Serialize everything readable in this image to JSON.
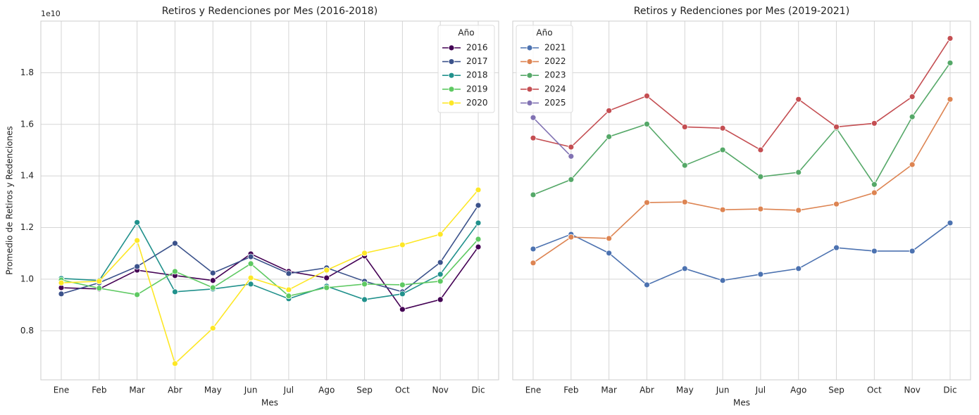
{
  "chart_data": [
    {
      "type": "line",
      "title": "Retiros y Redenciones por Mes (2016-2018)",
      "x_label": "Mes",
      "y_label": "Promedio de Retiros y Redenciones",
      "offset_text": "1e10",
      "categories": [
        "Ene",
        "Feb",
        "Mar",
        "Abr",
        "May",
        "Jun",
        "Jul",
        "Ago",
        "Sep",
        "Oct",
        "Nov",
        "Dic"
      ],
      "ylim": [
        0.61,
        2.0
      ],
      "yticks": [
        0.8,
        {
          "value": 1,
          "label": "1.0"
        },
        1.2,
        1.4,
        1.6,
        1.8
      ],
      "show_ytick_labels": true,
      "grid": true,
      "legend_title": "Año",
      "legend": "upper right",
      "series": [
        {
          "name": "2016",
          "color": "#440154",
          "values": [
            0.967,
            0.962,
            1.035,
            1.014,
            0.995,
            1.098,
            1.03,
            1.005,
            1.09,
            0.883,
            0.921,
            1.125
          ]
        },
        {
          "name": "2017",
          "color": "#3b528b",
          "values": [
            0.943,
            0.986,
            1.049,
            1.139,
            1.024,
            1.087,
            1.022,
            1.044,
            0.992,
            0.951,
            1.065,
            1.286
          ]
        },
        {
          "name": "2018",
          "color": "#21918c",
          "values": [
            1.003,
            0.995,
            1.22,
            0.951,
            0.962,
            0.981,
            0.924,
            0.973,
            0.921,
            0.943,
            1.019,
            1.218
          ]
        },
        {
          "name": "2019",
          "color": "#5ec962",
          "values": [
            0.997,
            0.965,
            0.94,
            1.03,
            0.967,
            1.06,
            0.935,
            0.967,
            0.981,
            0.978,
            0.992,
            1.155
          ]
        },
        {
          "name": "2020",
          "color": "#fde725",
          "values": [
            0.986,
            0.992,
            1.15,
            0.673,
            0.81,
            1.005,
            0.959,
            1.035,
            1.101,
            1.133,
            1.174,
            1.346
          ]
        }
      ]
    },
    {
      "type": "line",
      "title": "Retiros y Redenciones por Mes (2019-2021)",
      "x_label": "Mes",
      "categories": [
        "Ene",
        "Feb",
        "Mar",
        "Abr",
        "May",
        "Jun",
        "Jul",
        "Ago",
        "Sep",
        "Oct",
        "Nov",
        "Dic"
      ],
      "ylim": [
        0.61,
        2.0
      ],
      "yticks": [
        0.8,
        1,
        1.2,
        1.4,
        1.6,
        1.8
      ],
      "show_ytick_labels": false,
      "grid": true,
      "legend_title": "Año",
      "legend": "upper left",
      "series": [
        {
          "name": "2021",
          "color": "#4c72b0",
          "values": [
            1.117,
            1.174,
            1.101,
            0.978,
            1.041,
            0.995,
            1.019,
            1.041,
            1.122,
            1.109,
            1.109,
            1.218
          ]
        },
        {
          "name": "2022",
          "color": "#dd8452",
          "values": [
            1.063,
            1.163,
            1.158,
            1.297,
            1.299,
            1.269,
            1.272,
            1.267,
            1.291,
            1.335,
            1.444,
            1.697
          ]
        },
        {
          "name": "2023",
          "color": "#55a868",
          "values": [
            1.327,
            1.386,
            1.552,
            1.601,
            1.441,
            1.501,
            1.397,
            1.414,
            1.585,
            1.367,
            1.629,
            1.838
          ]
        },
        {
          "name": "2024",
          "color": "#c44e52",
          "values": [
            1.547,
            1.512,
            1.653,
            1.71,
            1.59,
            1.585,
            1.501,
            1.697,
            1.59,
            1.604,
            1.707,
            1.933
          ]
        },
        {
          "name": "2025",
          "color": "#8172b3",
          "values": [
            1.626,
            1.476,
            null,
            null,
            null,
            null,
            null,
            null,
            null,
            null,
            null,
            null
          ]
        }
      ]
    }
  ]
}
